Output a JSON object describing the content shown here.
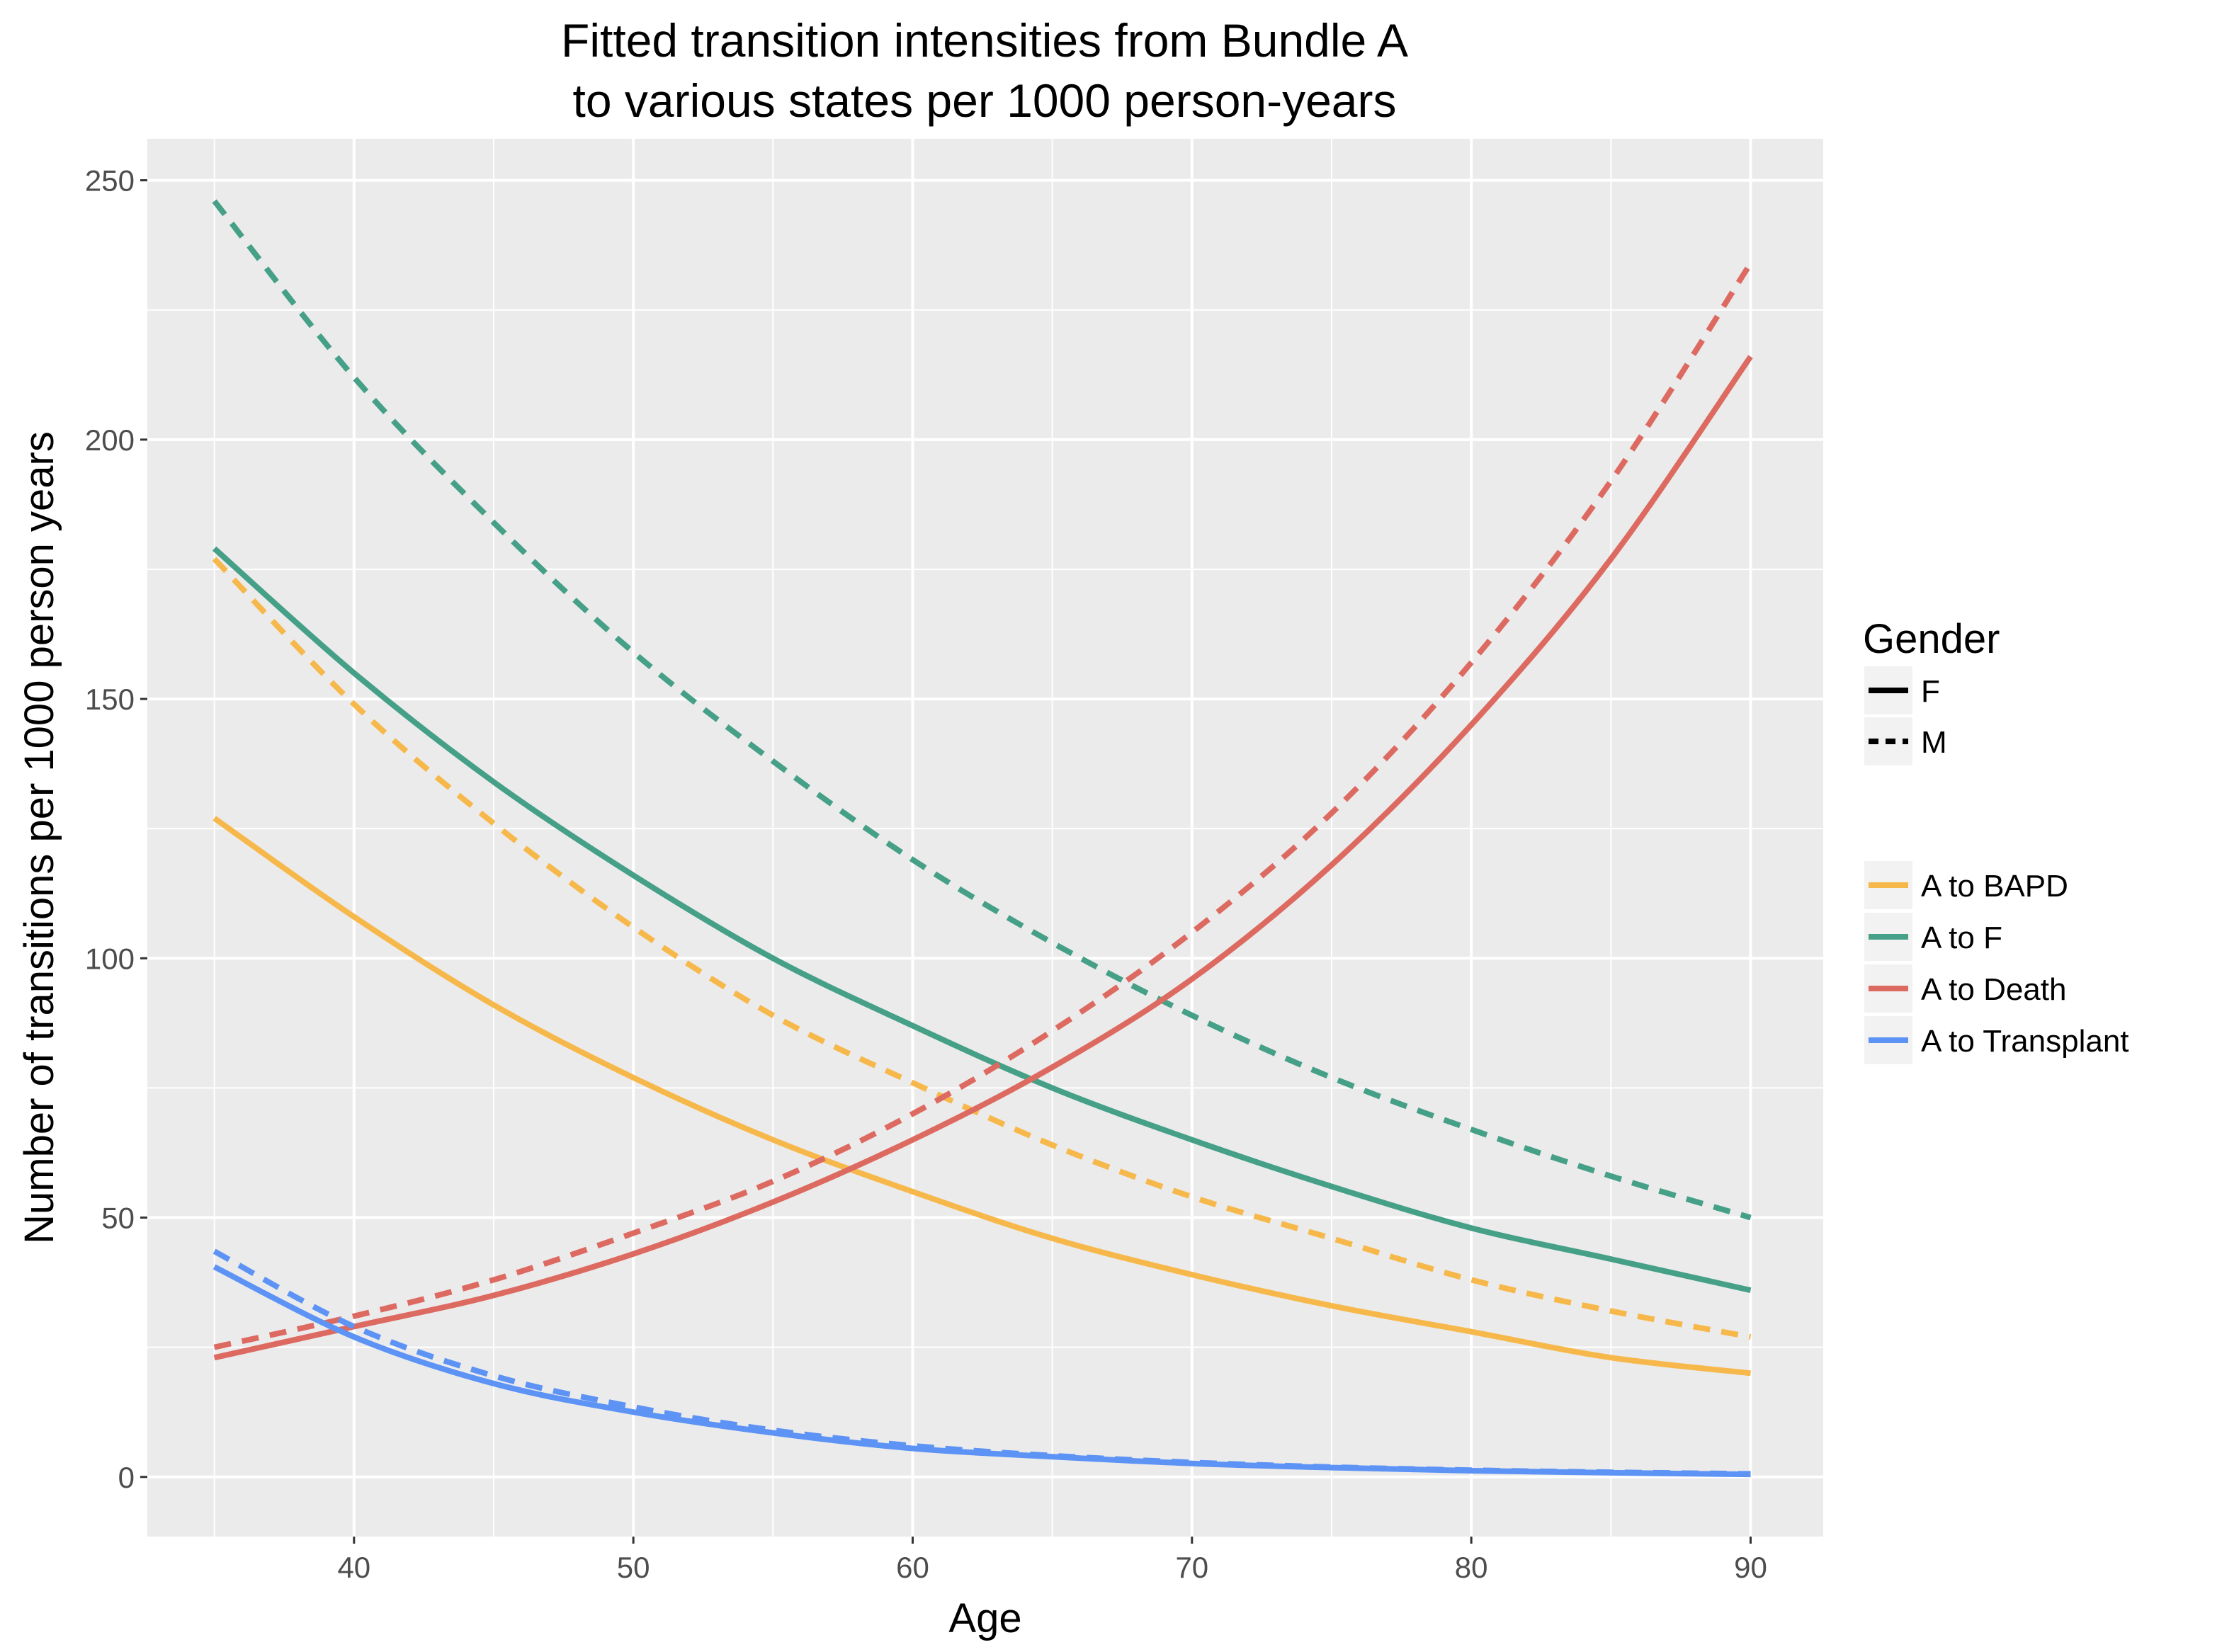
{
  "chart_data": {
    "type": "line",
    "title": "Fitted transition intensities from Bundle A",
    "subtitle": "to various states per 1000 person-years",
    "xlabel": "Age",
    "ylabel": "Number of transitions per 1000 person years",
    "xlim": [
      32.6,
      92.6
    ],
    "ylim": [
      -11.5,
      258
    ],
    "x_ticks": [
      40,
      50,
      60,
      70,
      80,
      90
    ],
    "y_ticks": [
      0,
      50,
      100,
      150,
      200,
      250
    ],
    "grid": true,
    "panel_background": "#ebebeb",
    "legend_position": "right",
    "x": [
      35,
      40,
      45,
      50,
      55,
      60,
      65,
      70,
      75,
      80,
      85,
      90
    ],
    "gender_legend": {
      "title": "Gender",
      "items": [
        {
          "label": "F",
          "linetype": "solid"
        },
        {
          "label": "M",
          "linetype": "dashed"
        }
      ]
    },
    "transition_legend": {
      "items": [
        {
          "label": "A to BAPD",
          "color": "#f7b84b"
        },
        {
          "label": "A to F",
          "color": "#45a087"
        },
        {
          "label": "A to Death",
          "color": "#dd6a61"
        },
        {
          "label": "A to Transplant",
          "color": "#5d93f5"
        }
      ]
    },
    "series": [
      {
        "transition": "A to BAPD",
        "gender": "F",
        "color": "#f7b84b",
        "linetype": "solid",
        "values": [
          127,
          108,
          91,
          77,
          65,
          55,
          46,
          39,
          33,
          28,
          23,
          20
        ]
      },
      {
        "transition": "A to BAPD",
        "gender": "M",
        "color": "#f7b84b",
        "linetype": "dashed",
        "values": [
          177,
          149,
          126,
          106,
          89,
          76,
          64,
          54,
          46,
          38,
          32,
          27
        ]
      },
      {
        "transition": "A to F",
        "gender": "F",
        "color": "#45a087",
        "linetype": "solid",
        "values": [
          179,
          155,
          134,
          116,
          100,
          87,
          75,
          65,
          56,
          48,
          42,
          36
        ]
      },
      {
        "transition": "A to F",
        "gender": "M",
        "color": "#45a087",
        "linetype": "dashed",
        "values": [
          246,
          212,
          184,
          159,
          138,
          119,
          103,
          89,
          77,
          67,
          58,
          50
        ]
      },
      {
        "transition": "A to Death",
        "gender": "F",
        "color": "#dd6a61",
        "linetype": "solid",
        "values": [
          23,
          29,
          35,
          43,
          53,
          65,
          79,
          96,
          118,
          145,
          177,
          216
        ]
      },
      {
        "transition": "A to Death",
        "gender": "M",
        "color": "#dd6a61",
        "linetype": "dashed",
        "values": [
          25,
          31,
          38,
          47,
          57,
          70,
          86,
          105,
          128,
          157,
          192,
          234
        ]
      },
      {
        "transition": "A to Transplant",
        "gender": "F",
        "color": "#5d93f5",
        "linetype": "solid",
        "values": [
          40.5,
          27,
          18,
          12.5,
          8.5,
          5.5,
          3.9,
          2.6,
          1.8,
          1.2,
          0.8,
          0.5
        ]
      },
      {
        "transition": "A to Transplant",
        "gender": "M",
        "color": "#5d93f5",
        "linetype": "dashed",
        "values": [
          43.5,
          29,
          19.5,
          13.5,
          9,
          6,
          4.1,
          2.8,
          1.9,
          1.3,
          0.9,
          0.6
        ]
      }
    ]
  }
}
